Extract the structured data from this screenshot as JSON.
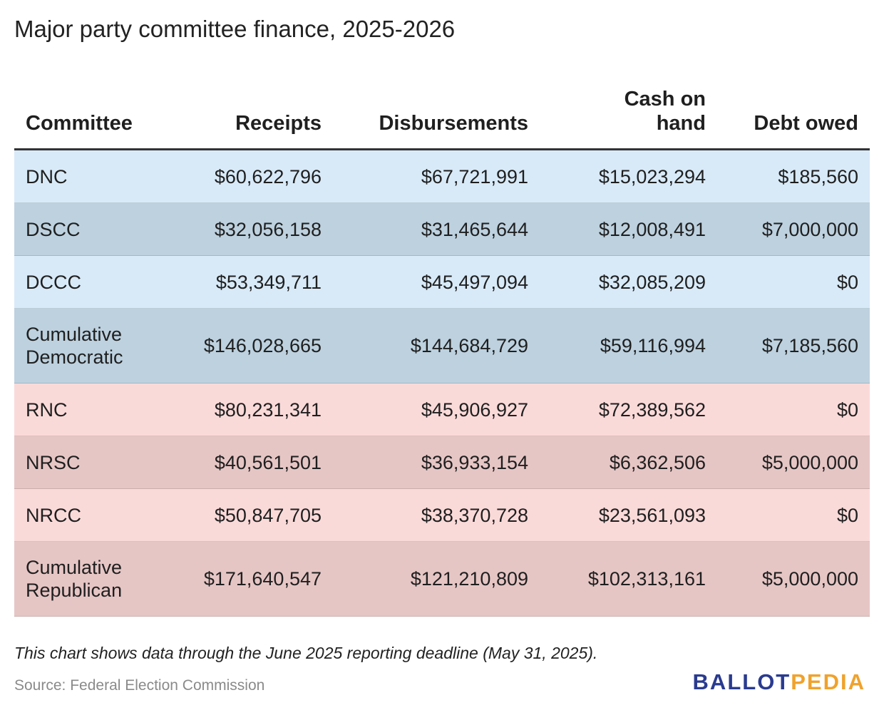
{
  "title": "Major party committee finance, 2025-2026",
  "colors": {
    "dem_light": "#d8eaf8",
    "dem_dark": "#bdd1df",
    "rep_light": "#fadad9",
    "rep_dark": "#e6c6c5",
    "logo_blue": "#2a3b8f",
    "logo_orange": "#f0a22c"
  },
  "chart_data": {
    "type": "table",
    "columns": [
      "Committee",
      "Receipts",
      "Disbursements",
      "Cash on hand",
      "Debt owed"
    ],
    "rows": [
      {
        "committee": "DNC",
        "receipts": "$60,622,796",
        "disbursements": "$67,721,991",
        "cash_on_hand": "$15,023,294",
        "debt_owed": "$185,560",
        "party": "dem",
        "shade": "light"
      },
      {
        "committee": "DSCC",
        "receipts": "$32,056,158",
        "disbursements": "$31,465,644",
        "cash_on_hand": "$12,008,491",
        "debt_owed": "$7,000,000",
        "party": "dem",
        "shade": "dark"
      },
      {
        "committee": "DCCC",
        "receipts": "$53,349,711",
        "disbursements": "$45,497,094",
        "cash_on_hand": "$32,085,209",
        "debt_owed": "$0",
        "party": "dem",
        "shade": "light"
      },
      {
        "committee": "Cumulative Democratic",
        "receipts": "$146,028,665",
        "disbursements": "$144,684,729",
        "cash_on_hand": "$59,116,994",
        "debt_owed": "$7,185,560",
        "party": "dem",
        "shade": "dark"
      },
      {
        "committee": "RNC",
        "receipts": "$80,231,341",
        "disbursements": "$45,906,927",
        "cash_on_hand": "$72,389,562",
        "debt_owed": "$0",
        "party": "rep",
        "shade": "light"
      },
      {
        "committee": "NRSC",
        "receipts": "$40,561,501",
        "disbursements": "$36,933,154",
        "cash_on_hand": "$6,362,506",
        "debt_owed": "$5,000,000",
        "party": "rep",
        "shade": "dark"
      },
      {
        "committee": "NRCC",
        "receipts": "$50,847,705",
        "disbursements": "$38,370,728",
        "cash_on_hand": "$23,561,093",
        "debt_owed": "$0",
        "party": "rep",
        "shade": "light"
      },
      {
        "committee": "Cumulative Republican",
        "receipts": "$171,640,547",
        "disbursements": "$121,210,809",
        "cash_on_hand": "$102,313,161",
        "debt_owed": "$5,000,000",
        "party": "rep",
        "shade": "dark"
      }
    ]
  },
  "footnote": "This chart shows data through the June 2025 reporting deadline (May 31, 2025).",
  "source": "Source: Federal Election Commission",
  "logo": {
    "part1": "BALLOT",
    "part2": "PEDIA"
  }
}
